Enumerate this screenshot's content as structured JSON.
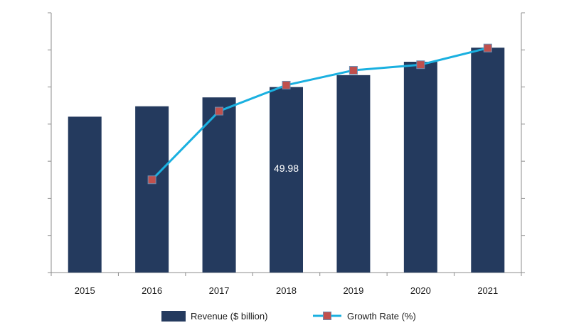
{
  "chart_data": {
    "type": "bar",
    "categories": [
      "2015",
      "2016",
      "2017",
      "2018",
      "2019",
      "2020",
      "2021"
    ],
    "series": [
      {
        "name": "Revenue ($ billion)",
        "type": "bar",
        "color": "#243a5e",
        "values": [
          42.0,
          44.8,
          47.2,
          49.98,
          53.2,
          56.8,
          60.6
        ]
      },
      {
        "name": "Growth Rate (%)",
        "type": "line",
        "color": "#1ab0e0",
        "marker_color": "#c0504d",
        "values": [
          null,
          2.5,
          4.35,
          5.05,
          5.45,
          5.6,
          6.05
        ]
      }
    ],
    "data_labels": [
      {
        "category": "2018",
        "text": "49.98"
      }
    ],
    "ylim": [
      0,
      70
    ],
    "y2lim": [
      0,
      7
    ],
    "grid": false,
    "legend": "bottom"
  }
}
